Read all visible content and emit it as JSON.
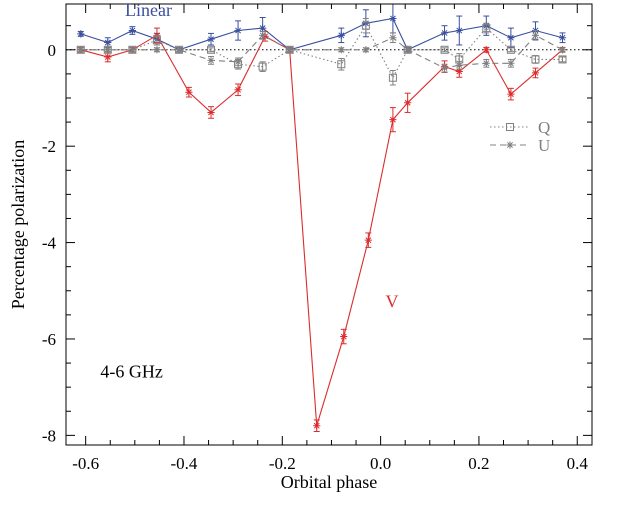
{
  "chart_data": {
    "type": "line",
    "xlabel": "Orbital phase",
    "ylabel": "Percentage polarization",
    "xlim": [
      -0.64,
      0.43
    ],
    "ylim": [
      -8.2,
      0.95
    ],
    "xticks": [
      -0.6,
      -0.4,
      -0.2,
      0.0,
      0.2,
      0.4
    ],
    "xtick_labels": [
      "-0.6",
      "-0.4",
      "-0.2",
      "0.0",
      "0.2",
      "0.4"
    ],
    "yticks": [
      -8,
      -6,
      -4,
      -2,
      0
    ],
    "ytick_labels": [
      "-8",
      "-6",
      "-4",
      "-2",
      "0"
    ],
    "zero_line": true,
    "annotations": [
      {
        "text": "Linear",
        "x": -0.52,
        "y": 0.7,
        "color": "#3a4fa0"
      },
      {
        "text": "V",
        "x": 0.01,
        "y": -5.35,
        "color": "#dc2c2c"
      },
      {
        "text": "4-6 GHz",
        "x": -0.57,
        "y": -6.8,
        "color": "#000000"
      }
    ],
    "legend": {
      "position": "right",
      "entries": [
        {
          "name": "Q",
          "style": "dotted",
          "marker": "square",
          "color": "#808080"
        },
        {
          "name": "U",
          "style": "dashed",
          "marker": "star",
          "color": "#808080"
        }
      ]
    },
    "series": [
      {
        "color": "#3a4fa0",
        "style": "solid",
        "marker": "star",
        "x": [
          -0.61,
          -0.555,
          -0.505,
          -0.455,
          -0.41,
          -0.345,
          -0.29,
          -0.24,
          -0.185,
          -0.08,
          -0.03,
          0.025,
          0.055,
          0.13,
          0.16,
          0.215,
          0.265,
          0.315,
          0.37
        ],
        "y": [
          0.33,
          0.15,
          0.4,
          0.22,
          0.0,
          0.22,
          0.4,
          0.45,
          0.0,
          0.3,
          0.55,
          0.65,
          0.0,
          0.35,
          0.4,
          0.5,
          0.25,
          0.4,
          0.25
        ],
        "err": [
          0.05,
          0.1,
          0.08,
          0.12,
          0.05,
          0.12,
          0.2,
          0.22,
          0.05,
          0.15,
          0.28,
          0.3,
          0.05,
          0.15,
          0.3,
          0.2,
          0.2,
          0.18,
          0.1
        ]
      },
      {
        "color": "#dc2c2c",
        "style": "solid",
        "marker": "star",
        "x": [
          -0.61,
          -0.555,
          -0.505,
          -0.455,
          -0.39,
          -0.345,
          -0.29,
          -0.235,
          -0.185,
          -0.13,
          -0.075,
          -0.025,
          0.025,
          0.055,
          0.13,
          0.16,
          0.215,
          0.265,
          0.315,
          0.37
        ],
        "y": [
          0.0,
          -0.15,
          0.0,
          0.3,
          -0.88,
          -1.3,
          -0.83,
          0.28,
          0.0,
          -7.8,
          -5.95,
          -3.95,
          -1.45,
          -1.1,
          -0.35,
          -0.45,
          0.0,
          -0.92,
          -0.48,
          0.0
        ],
        "err": [
          0.05,
          0.1,
          0.05,
          0.15,
          0.1,
          0.12,
          0.12,
          0.1,
          0.05,
          0.12,
          0.15,
          0.15,
          0.25,
          0.2,
          0.12,
          0.12,
          0.05,
          0.12,
          0.1,
          0.05
        ]
      },
      {
        "name": "Q",
        "color": "#808080",
        "style": "dotted",
        "marker": "square",
        "x": [
          -0.61,
          -0.555,
          -0.505,
          -0.455,
          -0.41,
          -0.345,
          -0.29,
          -0.24,
          -0.185,
          -0.08,
          -0.03,
          0.025,
          0.055,
          0.13,
          0.16,
          0.215,
          0.265,
          0.315,
          0.37
        ],
        "y": [
          0.0,
          0.0,
          0.0,
          0.2,
          0.0,
          0.0,
          -0.3,
          -0.35,
          0.0,
          -0.3,
          0.5,
          -0.58,
          0.0,
          0.0,
          -0.2,
          0.45,
          0.0,
          -0.2,
          -0.2
        ],
        "err": [
          0.04,
          0.04,
          0.04,
          0.1,
          0.04,
          0.04,
          0.1,
          0.1,
          0.04,
          0.12,
          0.15,
          0.15,
          0.04,
          0.04,
          0.12,
          0.1,
          0.04,
          0.08,
          0.05
        ]
      },
      {
        "name": "U",
        "color": "#808080",
        "style": "dashed",
        "marker": "star",
        "x": [
          -0.61,
          -0.555,
          -0.505,
          -0.455,
          -0.41,
          -0.345,
          -0.29,
          -0.24,
          -0.185,
          -0.08,
          -0.03,
          0.025,
          0.055,
          0.13,
          0.16,
          0.215,
          0.265,
          0.315,
          0.37
        ],
        "y": [
          0.0,
          0.0,
          0.0,
          0.0,
          0.0,
          -0.22,
          -0.25,
          0.3,
          0.0,
          0.0,
          0.0,
          0.25,
          0.0,
          -0.38,
          -0.32,
          -0.28,
          -0.28,
          0.3,
          0.0
        ],
        "err": [
          0.04,
          0.04,
          0.04,
          0.04,
          0.04,
          0.08,
          0.08,
          0.08,
          0.04,
          0.04,
          0.04,
          0.1,
          0.04,
          0.08,
          0.08,
          0.08,
          0.08,
          0.1,
          0.04
        ]
      }
    ]
  }
}
